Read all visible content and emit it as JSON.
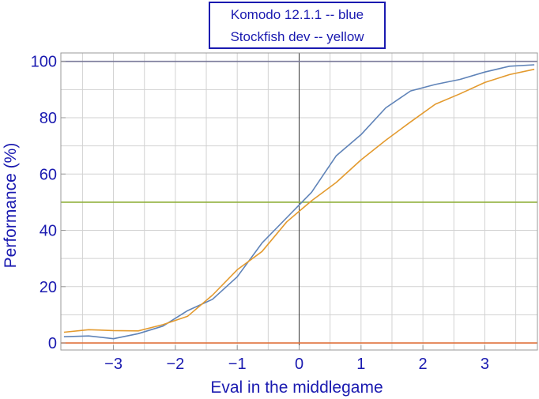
{
  "chart_data": {
    "type": "line",
    "legend": [
      "Komodo 12.1.1 -- blue",
      "Stockfish dev -- yellow"
    ],
    "xlabel": "Eval in the middlegame",
    "ylabel": "Performance (%)",
    "xlim": [
      -3.85,
      3.85
    ],
    "ylim": [
      -2.5,
      103
    ],
    "x_ticks": [
      -3,
      -2,
      -1,
      0,
      1,
      2,
      3
    ],
    "x_tick_labels": [
      "−3",
      "−2",
      "−1",
      "0",
      "1",
      "2",
      "3"
    ],
    "y_ticks": [
      0,
      20,
      40,
      60,
      80,
      100
    ],
    "y_tick_labels": [
      "0",
      "20",
      "40",
      "60",
      "80",
      "100"
    ],
    "grid": true,
    "reference_lines": [
      {
        "y": 100,
        "color": "#7a7a9a"
      },
      {
        "y": 50,
        "color": "#8fb03a"
      },
      {
        "y": 0,
        "color": "#e0703a"
      }
    ],
    "series": [
      {
        "name": "Komodo 12.1.1",
        "color": "#5f83b8",
        "x": [
          -3.8,
          -3.4,
          -3.0,
          -2.6,
          -2.2,
          -1.8,
          -1.4,
          -1.0,
          -0.6,
          -0.2,
          0.2,
          0.6,
          1.0,
          1.4,
          1.8,
          2.2,
          2.6,
          3.0,
          3.4,
          3.8
        ],
        "y": [
          2.2,
          2.5,
          1.5,
          3.3,
          6.0,
          11.5,
          15.5,
          23.5,
          35.5,
          44.5,
          53.5,
          66.5,
          74.0,
          83.5,
          89.5,
          91.8,
          93.6,
          96.2,
          98.3,
          98.8
        ]
      },
      {
        "name": "Stockfish dev",
        "color": "#e39a2e",
        "x": [
          -3.8,
          -3.4,
          -3.0,
          -2.6,
          -2.2,
          -1.8,
          -1.4,
          -1.0,
          -0.6,
          -0.2,
          0.2,
          0.6,
          1.0,
          1.4,
          1.8,
          2.2,
          2.6,
          3.0,
          3.4,
          3.8
        ],
        "y": [
          3.8,
          4.7,
          4.4,
          4.3,
          6.5,
          9.5,
          17.0,
          26.0,
          32.5,
          43.0,
          50.5,
          57.0,
          65.0,
          72.0,
          78.5,
          84.8,
          88.5,
          92.5,
          95.3,
          97.2
        ]
      }
    ]
  }
}
